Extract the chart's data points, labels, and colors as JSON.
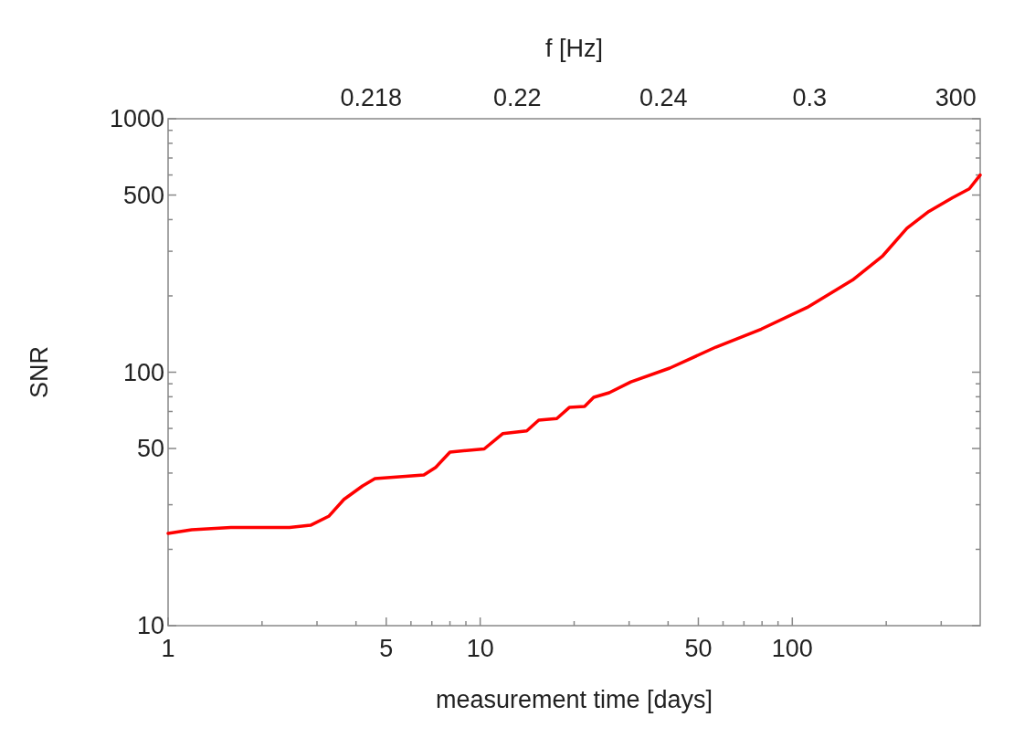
{
  "chart_data": {
    "type": "line",
    "xlabel": "measurement time [days]",
    "ylabel": "SNR",
    "x2label": "f [Hz]",
    "log": "xy",
    "grid": false,
    "marker": "none",
    "line_style": "solid",
    "xlim": [
      1,
      400
    ],
    "ylim": [
      10,
      1000
    ],
    "xticks": [
      1,
      {
        "value": 2,
        "label": null
      },
      {
        "value": 3,
        "label": null
      },
      {
        "value": 4,
        "label": null
      },
      5,
      {
        "value": 6,
        "label": null
      },
      {
        "value": 7,
        "label": null
      },
      {
        "value": 8,
        "label": null
      },
      {
        "value": 9,
        "label": null
      },
      10,
      {
        "value": 20,
        "label": null
      },
      {
        "value": 30,
        "label": null
      },
      {
        "value": 40,
        "label": null
      },
      50,
      {
        "value": 60,
        "label": null
      },
      {
        "value": 70,
        "label": null
      },
      {
        "value": 80,
        "label": null
      },
      {
        "value": 90,
        "label": null
      },
      100,
      {
        "value": 200,
        "label": null
      },
      {
        "value": 300,
        "label": null
      }
    ],
    "yticks": [
      10,
      {
        "value": 20,
        "label": null
      },
      {
        "value": 30,
        "label": null
      },
      {
        "value": 40,
        "label": null
      },
      50,
      {
        "value": 60,
        "label": null
      },
      {
        "value": 70,
        "label": null
      },
      {
        "value": 80,
        "label": null
      },
      {
        "value": 90,
        "label": null
      },
      100,
      {
        "value": 200,
        "label": null
      },
      {
        "value": 300,
        "label": null
      },
      {
        "value": 400,
        "label": null
      },
      500,
      {
        "value": 600,
        "label": null
      },
      {
        "value": 700,
        "label": null
      },
      {
        "value": 800,
        "label": null
      },
      {
        "value": 900,
        "label": null
      },
      1000
    ],
    "annotations": [
      "0.218",
      "0.22",
      "0.24",
      "0.3",
      "300"
    ],
    "series": [
      {
        "color": "#ff0000",
        "x": [
          1,
          1.19,
          1.59,
          2.45,
          2.86,
          3.27,
          3.66,
          4.2,
          4.6,
          6.6,
          7.2,
          8.0,
          10.3,
          11.8,
          14.1,
          15.4,
          17.6,
          19.3,
          21.6,
          23.1,
          25.9,
          30.4,
          40.5,
          56.9,
          79.6,
          111.5,
          156,
          195,
          233,
          274,
          326,
          369,
          400
        ],
        "values": [
          23.1,
          23.9,
          24.4,
          24.4,
          24.9,
          27.0,
          31.5,
          35.6,
          38.0,
          39.3,
          42.1,
          48.4,
          49.8,
          57.2,
          58.7,
          64.7,
          65.6,
          72.6,
          73.2,
          79.6,
          83,
          91.6,
          103.8,
          125.6,
          148,
          180,
          231,
          288,
          370,
          431,
          488,
          529,
          600
        ]
      }
    ]
  }
}
